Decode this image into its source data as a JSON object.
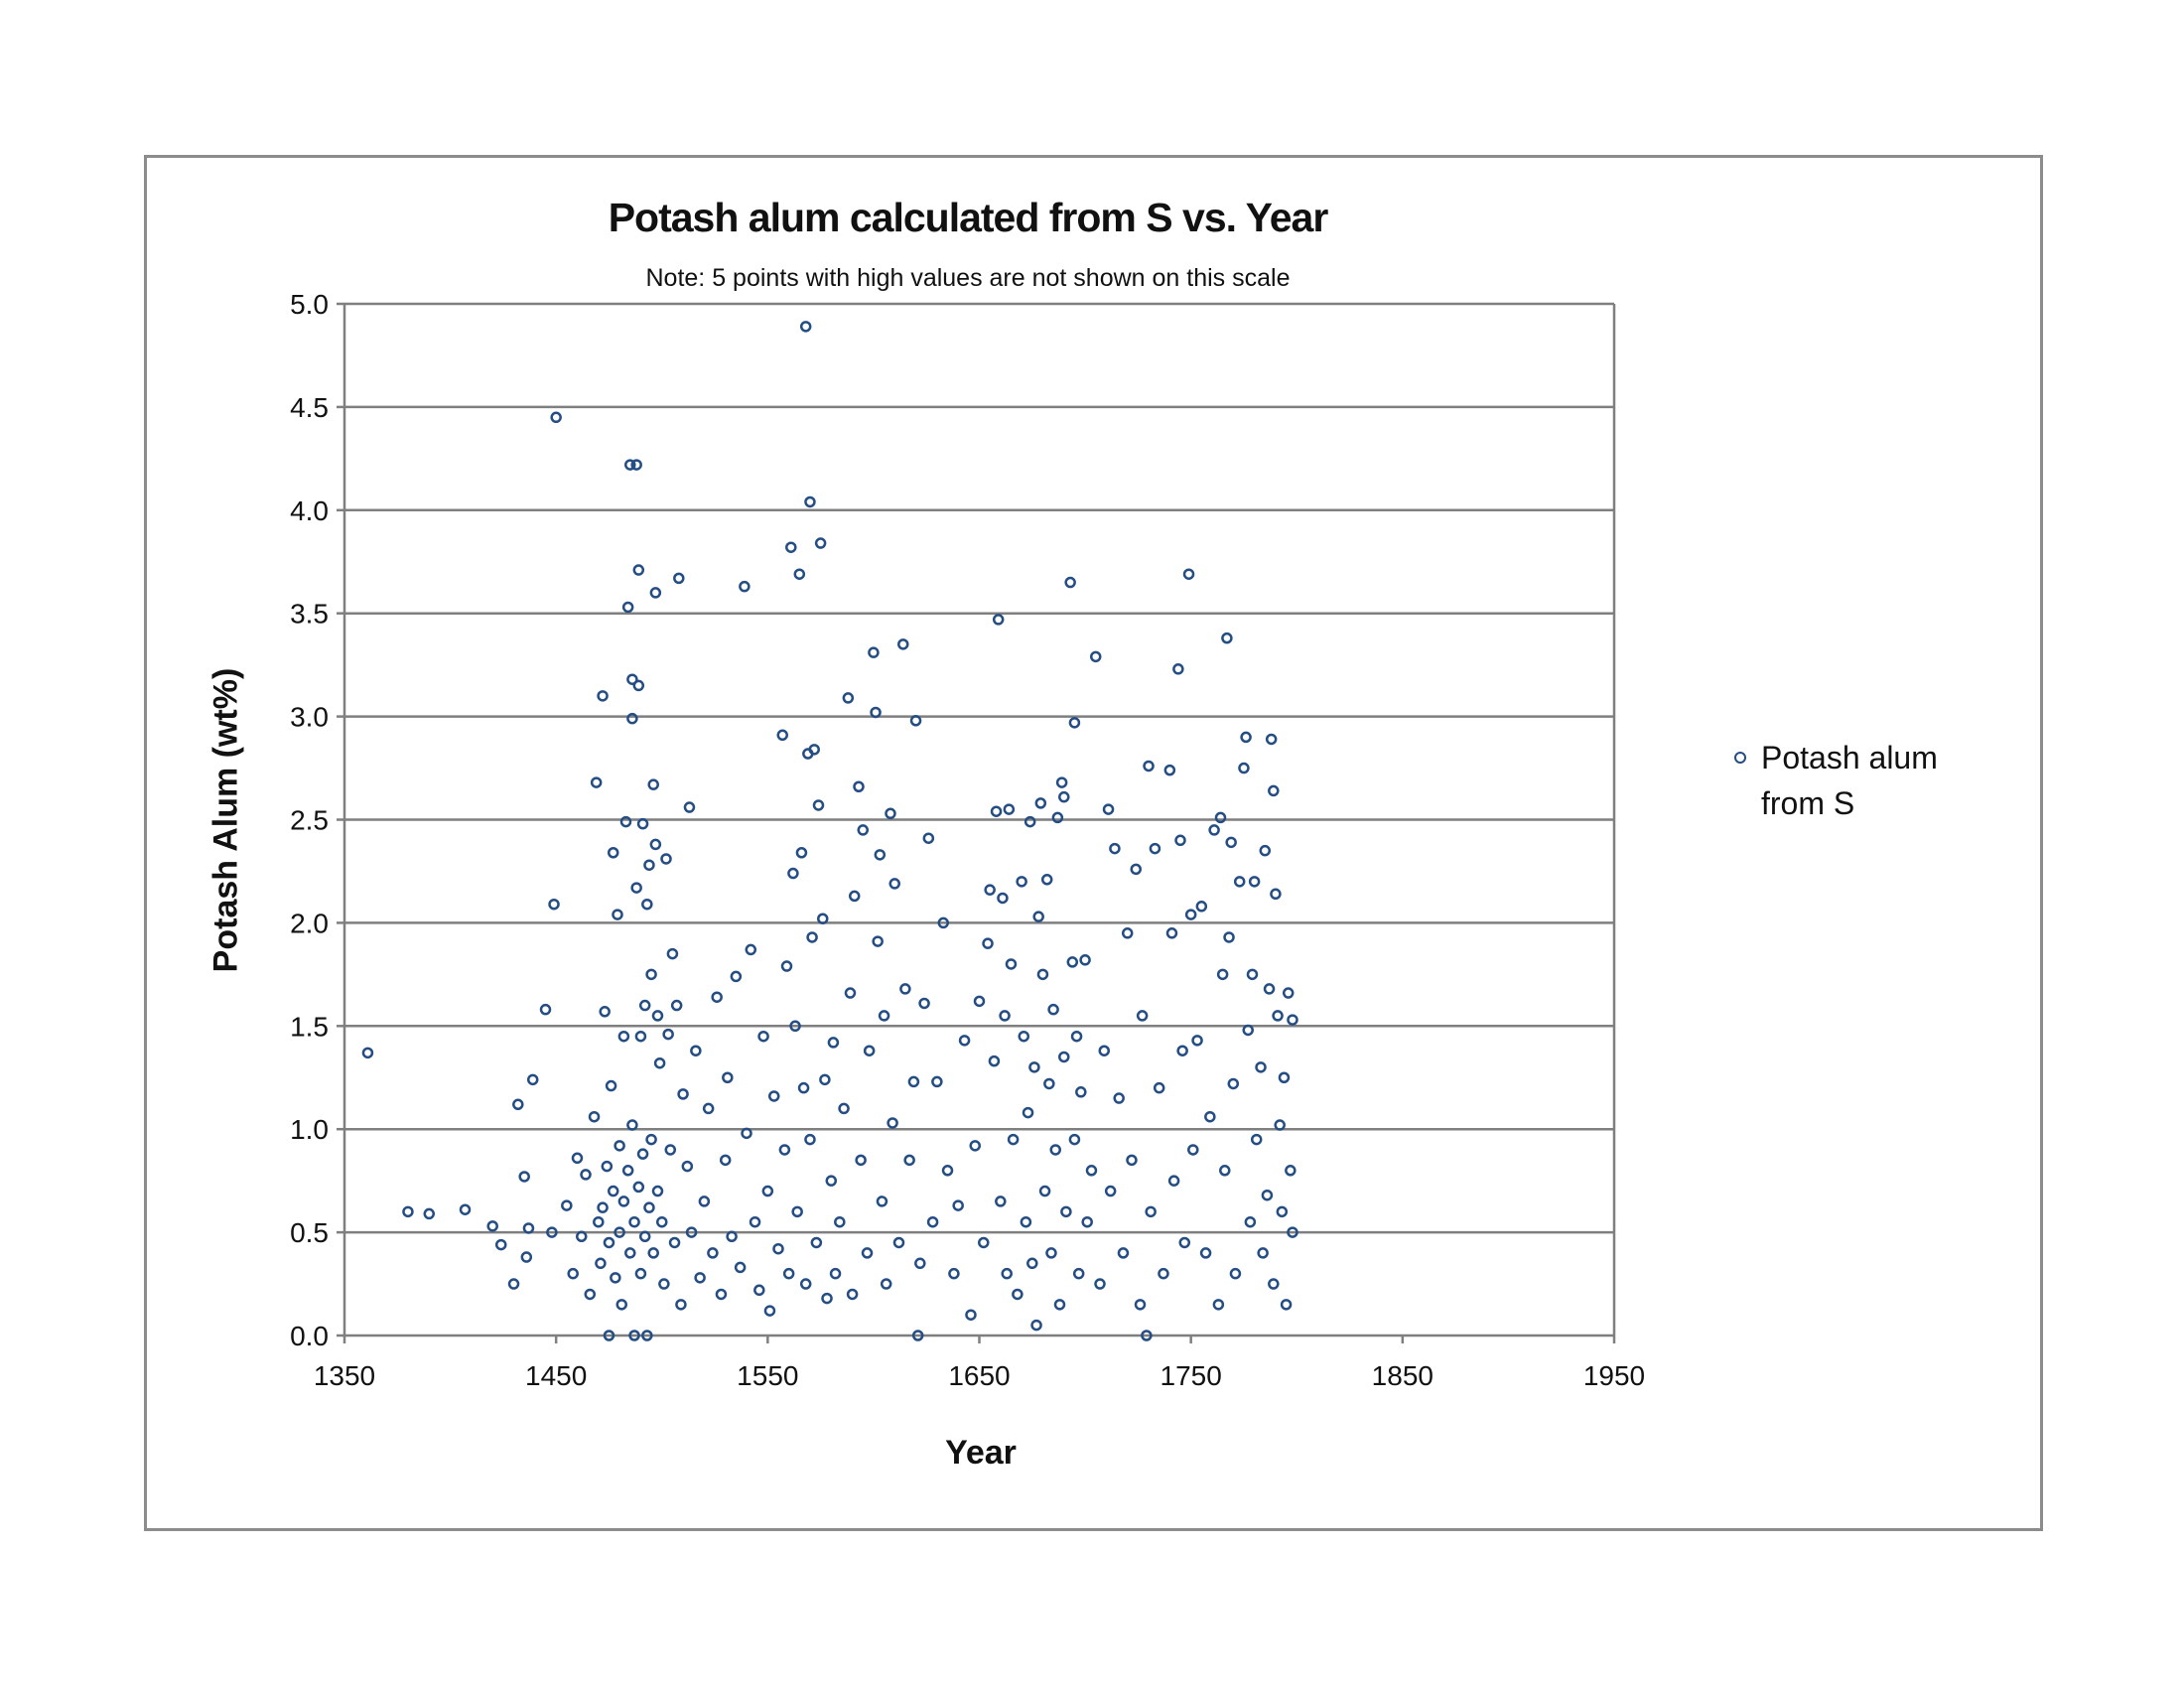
{
  "chart_data": {
    "type": "scatter",
    "title": "Potash alum calculated from S  vs. Year",
    "subtitle": "Note:  5 points with high values are not shown on this scale",
    "xlabel": "Year",
    "ylabel": "Potash Alum   (wt%)",
    "xlim": [
      1350,
      1950
    ],
    "ylim": [
      0,
      5
    ],
    "xticks": [
      "1350",
      "1450",
      "1550",
      "1650",
      "1750",
      "1850",
      "1950"
    ],
    "yticks": [
      "0.0",
      "0.5",
      "1.0",
      "1.5",
      "2.0",
      "2.5",
      "3.0",
      "3.5",
      "4.0",
      "4.5",
      "5.0"
    ],
    "grid": "horizontal",
    "legend_position": "right",
    "marker_color": "#244d84",
    "series": [
      {
        "name": "Potash alum from S",
        "points": [
          [
            1361,
            1.37
          ],
          [
            1380,
            0.6
          ],
          [
            1390,
            0.59
          ],
          [
            1407,
            0.61
          ],
          [
            1420,
            0.53
          ],
          [
            1424,
            0.44
          ],
          [
            1430,
            0.25
          ],
          [
            1432,
            1.12
          ],
          [
            1435,
            0.77
          ],
          [
            1437,
            0.52
          ],
          [
            1436,
            0.38
          ],
          [
            1439,
            1.24
          ],
          [
            1445,
            1.58
          ],
          [
            1449,
            2.09
          ],
          [
            1448,
            0.5
          ],
          [
            1450,
            4.45
          ],
          [
            1455,
            0.63
          ],
          [
            1458,
            0.3
          ],
          [
            1460,
            0.86
          ],
          [
            1462,
            0.48
          ],
          [
            1464,
            0.78
          ],
          [
            1466,
            0.2
          ],
          [
            1468,
            1.06
          ],
          [
            1469,
            2.68
          ],
          [
            1470,
            0.55
          ],
          [
            1471,
            0.35
          ],
          [
            1472,
            3.1
          ],
          [
            1472,
            0.62
          ],
          [
            1473,
            1.57
          ],
          [
            1474,
            0.82
          ],
          [
            1475,
            0.45
          ],
          [
            1475,
            0.0
          ],
          [
            1476,
            1.21
          ],
          [
            1477,
            2.34
          ],
          [
            1477,
            0.7
          ],
          [
            1478,
            0.28
          ],
          [
            1479,
            2.04
          ],
          [
            1480,
            0.92
          ],
          [
            1480,
            0.5
          ],
          [
            1481,
            0.15
          ],
          [
            1482,
            1.45
          ],
          [
            1482,
            0.65
          ],
          [
            1483,
            2.49
          ],
          [
            1484,
            3.53
          ],
          [
            1484,
            0.8
          ],
          [
            1485,
            4.22
          ],
          [
            1485,
            0.4
          ],
          [
            1486,
            3.18
          ],
          [
            1486,
            2.99
          ],
          [
            1486,
            1.02
          ],
          [
            1487,
            0.55
          ],
          [
            1487,
            0.0
          ],
          [
            1488,
            4.22
          ],
          [
            1488,
            2.17
          ],
          [
            1489,
            3.71
          ],
          [
            1489,
            3.15
          ],
          [
            1489,
            0.72
          ],
          [
            1490,
            1.45
          ],
          [
            1490,
            0.3
          ],
          [
            1491,
            2.48
          ],
          [
            1491,
            0.88
          ],
          [
            1492,
            1.6
          ],
          [
            1492,
            0.48
          ],
          [
            1493,
            2.09
          ],
          [
            1493,
            0.0
          ],
          [
            1494,
            2.28
          ],
          [
            1494,
            0.62
          ],
          [
            1495,
            1.75
          ],
          [
            1495,
            0.95
          ],
          [
            1496,
            2.67
          ],
          [
            1496,
            0.4
          ],
          [
            1497,
            3.6
          ],
          [
            1497,
            2.38
          ],
          [
            1498,
            1.55
          ],
          [
            1498,
            0.7
          ],
          [
            1499,
            1.32
          ],
          [
            1500,
            0.55
          ],
          [
            1501,
            0.25
          ],
          [
            1502,
            2.31
          ],
          [
            1503,
            1.46
          ],
          [
            1504,
            0.9
          ],
          [
            1505,
            1.85
          ],
          [
            1506,
            0.45
          ],
          [
            1507,
            1.6
          ],
          [
            1508,
            3.67
          ],
          [
            1509,
            0.15
          ],
          [
            1510,
            1.17
          ],
          [
            1512,
            0.82
          ],
          [
            1513,
            2.56
          ],
          [
            1514,
            0.5
          ],
          [
            1516,
            1.38
          ],
          [
            1518,
            0.28
          ],
          [
            1520,
            0.65
          ],
          [
            1522,
            1.1
          ],
          [
            1524,
            0.4
          ],
          [
            1526,
            1.64
          ],
          [
            1528,
            0.2
          ],
          [
            1530,
            0.85
          ],
          [
            1531,
            1.25
          ],
          [
            1533,
            0.48
          ],
          [
            1535,
            1.74
          ],
          [
            1537,
            0.33
          ],
          [
            1539,
            3.63
          ],
          [
            1540,
            0.98
          ],
          [
            1542,
            1.87
          ],
          [
            1544,
            0.55
          ],
          [
            1546,
            0.22
          ],
          [
            1548,
            1.45
          ],
          [
            1550,
            0.7
          ],
          [
            1551,
            0.12
          ],
          [
            1553,
            1.16
          ],
          [
            1555,
            0.42
          ],
          [
            1557,
            2.91
          ],
          [
            1558,
            0.9
          ],
          [
            1559,
            1.79
          ],
          [
            1560,
            0.3
          ],
          [
            1561,
            3.82
          ],
          [
            1562,
            2.24
          ],
          [
            1563,
            1.5
          ],
          [
            1564,
            0.6
          ],
          [
            1565,
            3.69
          ],
          [
            1566,
            2.34
          ],
          [
            1567,
            1.2
          ],
          [
            1568,
            4.89
          ],
          [
            1568,
            0.25
          ],
          [
            1569,
            2.82
          ],
          [
            1570,
            4.04
          ],
          [
            1570,
            0.95
          ],
          [
            1571,
            1.93
          ],
          [
            1572,
            2.84
          ],
          [
            1573,
            0.45
          ],
          [
            1574,
            2.57
          ],
          [
            1575,
            3.84
          ],
          [
            1576,
            2.02
          ],
          [
            1577,
            1.24
          ],
          [
            1578,
            0.18
          ],
          [
            1580,
            0.75
          ],
          [
            1581,
            1.42
          ],
          [
            1582,
            0.3
          ],
          [
            1584,
            0.55
          ],
          [
            1586,
            1.1
          ],
          [
            1588,
            3.09
          ],
          [
            1589,
            1.66
          ],
          [
            1590,
            0.2
          ],
          [
            1591,
            2.13
          ],
          [
            1593,
            2.66
          ],
          [
            1594,
            0.85
          ],
          [
            1595,
            2.45
          ],
          [
            1597,
            0.4
          ],
          [
            1598,
            1.38
          ],
          [
            1600,
            3.31
          ],
          [
            1601,
            3.02
          ],
          [
            1602,
            1.91
          ],
          [
            1603,
            2.33
          ],
          [
            1604,
            0.65
          ],
          [
            1605,
            1.55
          ],
          [
            1606,
            0.25
          ],
          [
            1608,
            2.53
          ],
          [
            1609,
            1.03
          ],
          [
            1610,
            2.19
          ],
          [
            1612,
            0.45
          ],
          [
            1614,
            3.35
          ],
          [
            1615,
            1.68
          ],
          [
            1617,
            0.85
          ],
          [
            1619,
            1.23
          ],
          [
            1620,
            2.98
          ],
          [
            1621,
            0.0
          ],
          [
            1622,
            0.35
          ],
          [
            1624,
            1.61
          ],
          [
            1626,
            2.41
          ],
          [
            1628,
            0.55
          ],
          [
            1630,
            1.23
          ],
          [
            1633,
            2.0
          ],
          [
            1635,
            0.8
          ],
          [
            1638,
            0.3
          ],
          [
            1640,
            0.63
          ],
          [
            1643,
            1.43
          ],
          [
            1646,
            0.1
          ],
          [
            1648,
            0.92
          ],
          [
            1650,
            1.62
          ],
          [
            1652,
            0.45
          ],
          [
            1654,
            1.9
          ],
          [
            1655,
            2.16
          ],
          [
            1657,
            1.33
          ],
          [
            1658,
            2.54
          ],
          [
            1659,
            3.47
          ],
          [
            1660,
            0.65
          ],
          [
            1661,
            2.12
          ],
          [
            1662,
            1.55
          ],
          [
            1663,
            0.3
          ],
          [
            1664,
            2.55
          ],
          [
            1665,
            1.8
          ],
          [
            1666,
            0.95
          ],
          [
            1668,
            0.2
          ],
          [
            1670,
            2.2
          ],
          [
            1671,
            1.45
          ],
          [
            1672,
            0.55
          ],
          [
            1673,
            1.08
          ],
          [
            1674,
            2.49
          ],
          [
            1675,
            0.35
          ],
          [
            1676,
            1.3
          ],
          [
            1677,
            0.05
          ],
          [
            1678,
            2.03
          ],
          [
            1679,
            2.58
          ],
          [
            1680,
            1.75
          ],
          [
            1681,
            0.7
          ],
          [
            1682,
            2.21
          ],
          [
            1683,
            1.22
          ],
          [
            1684,
            0.4
          ],
          [
            1685,
            1.58
          ],
          [
            1686,
            0.9
          ],
          [
            1687,
            2.51
          ],
          [
            1688,
            0.15
          ],
          [
            1689,
            2.68
          ],
          [
            1690,
            2.61
          ],
          [
            1690,
            1.35
          ],
          [
            1691,
            0.6
          ],
          [
            1693,
            3.65
          ],
          [
            1694,
            1.81
          ],
          [
            1695,
            2.97
          ],
          [
            1695,
            0.95
          ],
          [
            1696,
            1.45
          ],
          [
            1697,
            0.3
          ],
          [
            1698,
            1.18
          ],
          [
            1700,
            1.82
          ],
          [
            1701,
            0.55
          ],
          [
            1703,
            0.8
          ],
          [
            1705,
            3.29
          ],
          [
            1707,
            0.25
          ],
          [
            1709,
            1.38
          ],
          [
            1711,
            2.55
          ],
          [
            1712,
            0.7
          ],
          [
            1714,
            2.36
          ],
          [
            1716,
            1.15
          ],
          [
            1718,
            0.4
          ],
          [
            1720,
            1.95
          ],
          [
            1722,
            0.85
          ],
          [
            1724,
            2.26
          ],
          [
            1726,
            0.15
          ],
          [
            1727,
            1.55
          ],
          [
            1729,
            0.0
          ],
          [
            1730,
            2.76
          ],
          [
            1731,
            0.6
          ],
          [
            1733,
            2.36
          ],
          [
            1735,
            1.2
          ],
          [
            1737,
            0.3
          ],
          [
            1740,
            2.74
          ],
          [
            1741,
            1.95
          ],
          [
            1742,
            0.75
          ],
          [
            1744,
            3.23
          ],
          [
            1745,
            2.4
          ],
          [
            1746,
            1.38
          ],
          [
            1747,
            0.45
          ],
          [
            1749,
            3.69
          ],
          [
            1750,
            2.04
          ],
          [
            1751,
            0.9
          ],
          [
            1753,
            1.43
          ],
          [
            1755,
            2.08
          ],
          [
            1757,
            0.4
          ],
          [
            1759,
            1.06
          ],
          [
            1761,
            2.45
          ],
          [
            1763,
            0.15
          ],
          [
            1764,
            2.51
          ],
          [
            1765,
            1.75
          ],
          [
            1766,
            0.8
          ],
          [
            1767,
            3.38
          ],
          [
            1768,
            1.93
          ],
          [
            1769,
            2.39
          ],
          [
            1770,
            1.22
          ],
          [
            1771,
            0.3
          ],
          [
            1773,
            2.2
          ],
          [
            1775,
            2.75
          ],
          [
            1776,
            2.9
          ],
          [
            1777,
            1.48
          ],
          [
            1778,
            0.55
          ],
          [
            1779,
            1.75
          ],
          [
            1780,
            2.2
          ],
          [
            1781,
            0.95
          ],
          [
            1783,
            1.3
          ],
          [
            1784,
            0.4
          ],
          [
            1785,
            2.35
          ],
          [
            1786,
            0.68
          ],
          [
            1787,
            1.68
          ],
          [
            1788,
            2.89
          ],
          [
            1789,
            2.64
          ],
          [
            1789,
            0.25
          ],
          [
            1790,
            2.14
          ],
          [
            1791,
            1.55
          ],
          [
            1792,
            1.02
          ],
          [
            1793,
            0.6
          ],
          [
            1794,
            1.25
          ],
          [
            1795,
            0.15
          ],
          [
            1796,
            1.66
          ],
          [
            1797,
            0.8
          ],
          [
            1798,
            1.53
          ],
          [
            1798,
            0.5
          ]
        ]
      }
    ]
  }
}
